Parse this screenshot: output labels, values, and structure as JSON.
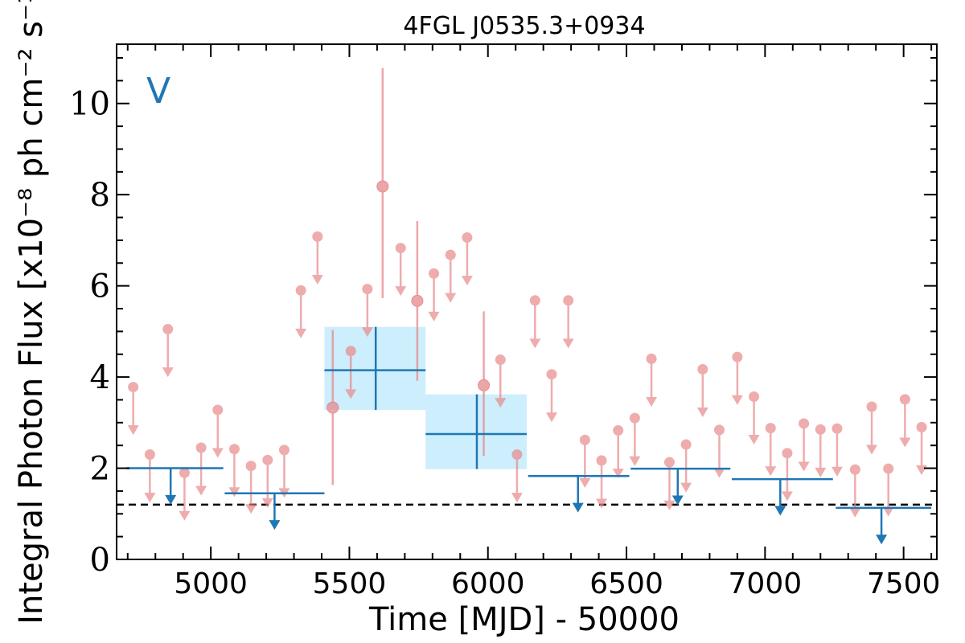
{
  "chart_data": {
    "type": "scatter",
    "title": "4FGL J0535.3+0934",
    "xlabel": "Time [MJD] - 50000",
    "ylabel": "Integral Photon Flux [x10⁻⁸ ph cm⁻² s⁻¹]",
    "annotation": "V",
    "xlim": [
      4660,
      7620
    ],
    "ylim": [
      0,
      11.3
    ],
    "x_ticks": [
      5000,
      5500,
      6000,
      6500,
      7000,
      7500
    ],
    "y_ticks": [
      0,
      2,
      4,
      6,
      8,
      10
    ],
    "reference_line": 1.2,
    "colors": {
      "fine": "#e8898b",
      "coarse": "#1f77b4",
      "band": "#cdeefc",
      "reference": "#000000"
    },
    "fine_points": [
      {
        "x": 5440,
        "y": 3.33,
        "yerr_low": 1.7,
        "yerr_high": 1.7
      },
      {
        "x": 5620,
        "y": 8.18,
        "yerr_low": 2.45,
        "yerr_high": 2.6
      },
      {
        "x": 5745,
        "y": 5.67,
        "yerr_low": 1.75,
        "yerr_high": 1.75
      },
      {
        "x": 5985,
        "y": 3.82,
        "yerr_low": 1.55,
        "yerr_high": 1.62
      }
    ],
    "fine_upper_limits": [
      {
        "x": 4720,
        "y": 3.78
      },
      {
        "x": 4780,
        "y": 2.3
      },
      {
        "x": 4845,
        "y": 5.05
      },
      {
        "x": 4905,
        "y": 1.9
      },
      {
        "x": 4965,
        "y": 2.45
      },
      {
        "x": 5025,
        "y": 3.28
      },
      {
        "x": 5085,
        "y": 2.42
      },
      {
        "x": 5145,
        "y": 2.05
      },
      {
        "x": 5205,
        "y": 2.18
      },
      {
        "x": 5265,
        "y": 2.4
      },
      {
        "x": 5325,
        "y": 5.9
      },
      {
        "x": 5385,
        "y": 7.08
      },
      {
        "x": 5505,
        "y": 4.57
      },
      {
        "x": 5565,
        "y": 5.93
      },
      {
        "x": 5685,
        "y": 6.83
      },
      {
        "x": 5805,
        "y": 6.27
      },
      {
        "x": 5865,
        "y": 6.68
      },
      {
        "x": 5925,
        "y": 7.06
      },
      {
        "x": 6045,
        "y": 4.38
      },
      {
        "x": 6105,
        "y": 2.3
      },
      {
        "x": 6170,
        "y": 5.68
      },
      {
        "x": 6230,
        "y": 4.06
      },
      {
        "x": 6290,
        "y": 5.68
      },
      {
        "x": 6350,
        "y": 2.62
      },
      {
        "x": 6410,
        "y": 2.17
      },
      {
        "x": 6470,
        "y": 2.83
      },
      {
        "x": 6530,
        "y": 3.1
      },
      {
        "x": 6590,
        "y": 4.4
      },
      {
        "x": 6655,
        "y": 2.13
      },
      {
        "x": 6715,
        "y": 2.52
      },
      {
        "x": 6775,
        "y": 4.17
      },
      {
        "x": 6835,
        "y": 2.84
      },
      {
        "x": 6900,
        "y": 4.44
      },
      {
        "x": 6960,
        "y": 3.57
      },
      {
        "x": 7020,
        "y": 2.88
      },
      {
        "x": 7080,
        "y": 2.33
      },
      {
        "x": 7140,
        "y": 2.98
      },
      {
        "x": 7200,
        "y": 2.85
      },
      {
        "x": 7260,
        "y": 2.87
      },
      {
        "x": 7325,
        "y": 1.97
      },
      {
        "x": 7385,
        "y": 3.35
      },
      {
        "x": 7445,
        "y": 1.99
      },
      {
        "x": 7505,
        "y": 3.51
      },
      {
        "x": 7565,
        "y": 2.9
      }
    ],
    "coarse_points": [
      {
        "x": 5595,
        "x0": 5410,
        "x1": 5775,
        "y": 4.15,
        "ylo": 3.28,
        "yhi": 5.1
      },
      {
        "x": 5960,
        "x0": 5775,
        "x1": 6140,
        "y": 2.75,
        "ylo": 1.98,
        "yhi": 3.62
      }
    ],
    "coarse_upper_limits": [
      {
        "x": 4855,
        "x0": 4695,
        "x1": 5045,
        "y": 2.0
      },
      {
        "x": 5230,
        "x0": 5050,
        "x1": 5410,
        "y": 1.45
      },
      {
        "x": 6325,
        "x0": 6145,
        "x1": 6510,
        "y": 1.83
      },
      {
        "x": 6685,
        "x0": 6515,
        "x1": 6875,
        "y": 1.99
      },
      {
        "x": 7055,
        "x0": 6880,
        "x1": 7245,
        "y": 1.76
      },
      {
        "x": 7420,
        "x0": 7255,
        "x1": 7600,
        "y": 1.13
      }
    ]
  }
}
